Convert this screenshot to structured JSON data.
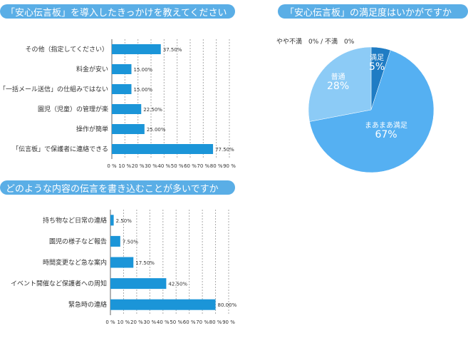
{
  "chart_data": [
    {
      "type": "bar",
      "orientation": "horizontal",
      "title": "「安心伝言板」を導入したきっかけを教えてください",
      "categories": [
        "その他（指定してください）",
        "料金が安い",
        "「一括メール送信」の仕組みではない",
        "園児（児童）の管理が楽",
        "操作が簡単",
        "「伝言板」で保護者に連絡できる"
      ],
      "values": [
        37.5,
        15.0,
        15.0,
        22.5,
        25.0,
        77.5
      ],
      "value_labels": [
        "37.50%",
        "15.00%",
        "15.00%",
        "22.50%",
        "25.00%",
        "77.50%"
      ],
      "xlim": [
        0,
        90
      ],
      "xticks": [
        "0 %",
        "10 %",
        "20 %",
        "30 %",
        "40 %",
        "50 %",
        "60 %",
        "70 %",
        "80 %",
        "90 %"
      ],
      "grid": true,
      "color": "#1b95d8"
    },
    {
      "type": "bar",
      "orientation": "horizontal",
      "title": "どのような内容の伝言を書き込むことが多いですか",
      "categories": [
        "持ち物など日常の連絡",
        "園児の様子など報告",
        "時間変更など急な案内",
        "イベント開催など保護者への周知",
        "緊急時の連絡"
      ],
      "values": [
        2.5,
        7.5,
        17.5,
        42.5,
        80.0
      ],
      "value_labels": [
        "2.50%",
        "7.50%",
        "17.50%",
        "42.50%",
        "80.00%"
      ],
      "xlim": [
        0,
        90
      ],
      "xticks": [
        "0 %",
        "10 %",
        "20 %",
        "30 %",
        "40 %",
        "50 %",
        "60 %",
        "70 %",
        "80 %",
        "90 %"
      ],
      "grid": true,
      "color": "#1b95d8"
    },
    {
      "type": "pie",
      "title": "「安心伝言板」の満足度はいかがですか",
      "slices": [
        {
          "name": "満足",
          "value": 5,
          "label": "5%",
          "color": "#1f7cc4"
        },
        {
          "name": "まあまあ満足",
          "value": 67,
          "label": "67%",
          "color": "#55b0f2"
        },
        {
          "name": "普通",
          "value": 28,
          "label": "28%",
          "color": "#8ccbf6"
        },
        {
          "name": "やや不満",
          "value": 0,
          "label": "0%",
          "color": "#8ccbf6"
        },
        {
          "name": "不満",
          "value": 0,
          "label": "0%",
          "color": "#8ccbf6"
        }
      ],
      "outside_label": "やや不満　0% / 不満　0%"
    }
  ]
}
